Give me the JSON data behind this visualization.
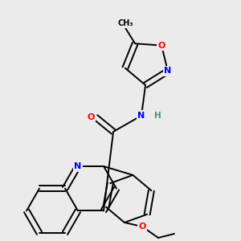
{
  "background_color": "#ebebeb",
  "bond_color": "#000000",
  "atom_colors": {
    "N": "#0000ff",
    "O": "#ff0000",
    "H": "#4a8a7a",
    "C": "#000000"
  },
  "figsize": [
    3.0,
    3.0
  ],
  "dpi": 100
}
